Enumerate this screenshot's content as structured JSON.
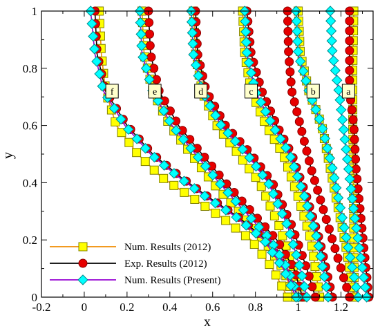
{
  "chart_data": {
    "type": "line",
    "xlabel": "x",
    "ylabel": "y",
    "xlim": [
      -0.2,
      1.35
    ],
    "ylim": [
      0,
      1
    ],
    "xticks": [
      "-0.2",
      "0",
      "0.2",
      "0.4",
      "0.6",
      "0.8",
      "1",
      "1.2"
    ],
    "xtick_values": [
      -0.2,
      0,
      0.2,
      0.4,
      0.6,
      0.8,
      1,
      1.2
    ],
    "yticks": [
      "0",
      "0.2",
      "0.4",
      "0.6",
      "0.8",
      "1"
    ],
    "ytick_values": [
      0,
      0.2,
      0.4,
      0.6,
      0.8,
      1
    ],
    "grid": false,
    "legend_position": "bottom-left",
    "legend": [
      {
        "label": "Num. Results (2012)",
        "line_color": "#f08c00",
        "marker": "square",
        "marker_fill": "#ffff00",
        "marker_edge": "#808000"
      },
      {
        "label": "Exp. Results (2012)",
        "line_color": "#000000",
        "marker": "circle",
        "marker_fill": "#e60000",
        "marker_edge": "#8b0000"
      },
      {
        "label": "Num. Results (Present)",
        "line_color": "#9400d3",
        "marker": "diamond",
        "marker_fill": "#00ffff",
        "marker_edge": "#008b8b"
      }
    ],
    "case_labels": [
      {
        "text": "a",
        "x": 1.235,
        "y": 0.72
      },
      {
        "text": "b",
        "x": 1.07,
        "y": 0.72
      },
      {
        "text": "c",
        "x": 0.78,
        "y": 0.72
      },
      {
        "text": "d",
        "x": 0.545,
        "y": 0.72
      },
      {
        "text": "e",
        "x": 0.33,
        "y": 0.72
      },
      {
        "text": "f",
        "x": 0.13,
        "y": 0.72
      }
    ],
    "series": [
      {
        "case": "a",
        "type": "num2012",
        "points": [
          [
            1.26,
            1.0
          ],
          [
            1.255,
            0.8
          ],
          [
            1.255,
            0.6
          ],
          [
            1.258,
            0.4
          ],
          [
            1.26,
            0.2
          ],
          [
            1.262,
            0.0
          ]
        ]
      },
      {
        "case": "a",
        "type": "exp2012",
        "points": [
          [
            1.24,
            1.0
          ],
          [
            1.24,
            0.85
          ],
          [
            1.24,
            0.72
          ],
          [
            1.26,
            0.6
          ],
          [
            1.27,
            0.45
          ],
          [
            1.29,
            0.3
          ],
          [
            1.31,
            0.15
          ],
          [
            1.33,
            0.0
          ]
        ]
      },
      {
        "case": "a",
        "type": "present",
        "points": [
          [
            1.15,
            1.0
          ],
          [
            1.16,
            0.85
          ],
          [
            1.19,
            0.72
          ],
          [
            1.21,
            0.6
          ],
          [
            1.235,
            0.45
          ],
          [
            1.26,
            0.3
          ],
          [
            1.29,
            0.15
          ],
          [
            1.32,
            0.0
          ]
        ]
      },
      {
        "case": "b",
        "type": "num2012",
        "points": [
          [
            1.0,
            1.0
          ],
          [
            1.01,
            0.85
          ],
          [
            1.05,
            0.72
          ],
          [
            1.11,
            0.6
          ],
          [
            1.15,
            0.45
          ],
          [
            1.19,
            0.3
          ],
          [
            1.23,
            0.15
          ],
          [
            1.26,
            0.0
          ]
        ]
      },
      {
        "case": "b",
        "type": "exp2012",
        "points": [
          [
            0.95,
            1.0
          ],
          [
            0.955,
            0.85
          ],
          [
            0.97,
            0.72
          ],
          [
            1.01,
            0.6
          ],
          [
            1.06,
            0.45
          ],
          [
            1.12,
            0.3
          ],
          [
            1.18,
            0.15
          ],
          [
            1.24,
            0.0
          ]
        ]
      },
      {
        "case": "b",
        "type": "present",
        "points": [
          [
            0.99,
            1.0
          ],
          [
            1.0,
            0.85
          ],
          [
            1.05,
            0.72
          ],
          [
            1.11,
            0.6
          ],
          [
            1.16,
            0.45
          ],
          [
            1.2,
            0.3
          ],
          [
            1.24,
            0.15
          ],
          [
            1.28,
            0.0
          ]
        ]
      },
      {
        "case": "c",
        "type": "num2012",
        "points": [
          [
            0.74,
            1.0
          ],
          [
            0.75,
            0.85
          ],
          [
            0.78,
            0.72
          ],
          [
            0.85,
            0.6
          ],
          [
            0.93,
            0.5
          ],
          [
            1.0,
            0.35
          ],
          [
            1.06,
            0.2
          ],
          [
            1.1,
            0.0
          ]
        ]
      },
      {
        "case": "c",
        "type": "exp2012",
        "points": [
          [
            0.76,
            1.0
          ],
          [
            0.78,
            0.85
          ],
          [
            0.83,
            0.72
          ],
          [
            0.9,
            0.6
          ],
          [
            0.97,
            0.5
          ],
          [
            1.04,
            0.35
          ],
          [
            1.1,
            0.2
          ],
          [
            1.16,
            0.0
          ]
        ]
      },
      {
        "case": "c",
        "type": "present",
        "points": [
          [
            0.75,
            1.0
          ],
          [
            0.76,
            0.85
          ],
          [
            0.8,
            0.72
          ],
          [
            0.88,
            0.6
          ],
          [
            0.96,
            0.5
          ],
          [
            1.03,
            0.35
          ],
          [
            1.09,
            0.2
          ],
          [
            1.14,
            0.0
          ]
        ]
      },
      {
        "case": "d",
        "type": "num2012",
        "points": [
          [
            0.51,
            1.0
          ],
          [
            0.52,
            0.85
          ],
          [
            0.55,
            0.72
          ],
          [
            0.62,
            0.6
          ],
          [
            0.72,
            0.5
          ],
          [
            0.82,
            0.4
          ],
          [
            0.91,
            0.25
          ],
          [
            0.98,
            0.1
          ],
          [
            1.02,
            0.0
          ]
        ]
      },
      {
        "case": "d",
        "type": "exp2012",
        "points": [
          [
            0.52,
            1.0
          ],
          [
            0.53,
            0.85
          ],
          [
            0.57,
            0.72
          ],
          [
            0.66,
            0.6
          ],
          [
            0.78,
            0.5
          ],
          [
            0.88,
            0.4
          ],
          [
            0.97,
            0.25
          ],
          [
            1.04,
            0.1
          ],
          [
            1.08,
            0.0
          ]
        ]
      },
      {
        "case": "d",
        "type": "present",
        "points": [
          [
            0.5,
            1.0
          ],
          [
            0.51,
            0.85
          ],
          [
            0.55,
            0.72
          ],
          [
            0.64,
            0.6
          ],
          [
            0.76,
            0.5
          ],
          [
            0.86,
            0.4
          ],
          [
            0.95,
            0.25
          ],
          [
            1.01,
            0.1
          ],
          [
            1.04,
            0.0
          ]
        ]
      },
      {
        "case": "e",
        "type": "num2012",
        "points": [
          [
            0.27,
            1.0
          ],
          [
            0.28,
            0.85
          ],
          [
            0.32,
            0.72
          ],
          [
            0.4,
            0.6
          ],
          [
            0.5,
            0.5
          ],
          [
            0.6,
            0.4
          ],
          [
            0.72,
            0.3
          ],
          [
            0.84,
            0.2
          ],
          [
            0.93,
            0.1
          ],
          [
            0.98,
            0.0
          ]
        ]
      },
      {
        "case": "e",
        "type": "exp2012",
        "points": [
          [
            0.3,
            1.0
          ],
          [
            0.31,
            0.85
          ],
          [
            0.35,
            0.72
          ],
          [
            0.44,
            0.6
          ],
          [
            0.55,
            0.5
          ],
          [
            0.66,
            0.4
          ],
          [
            0.78,
            0.3
          ],
          [
            0.9,
            0.2
          ],
          [
            0.98,
            0.1
          ],
          [
            1.02,
            0.0
          ]
        ]
      },
      {
        "case": "e",
        "type": "present",
        "points": [
          [
            0.26,
            1.0
          ],
          [
            0.27,
            0.85
          ],
          [
            0.32,
            0.72
          ],
          [
            0.41,
            0.6
          ],
          [
            0.52,
            0.5
          ],
          [
            0.63,
            0.4
          ],
          [
            0.75,
            0.3
          ],
          [
            0.87,
            0.2
          ],
          [
            0.95,
            0.1
          ],
          [
            1.0,
            0.0
          ]
        ]
      },
      {
        "case": "f",
        "type": "num2012",
        "points": [
          [
            0.07,
            1.0
          ],
          [
            0.08,
            0.85
          ],
          [
            0.1,
            0.72
          ],
          [
            0.15,
            0.6
          ],
          [
            0.25,
            0.5
          ],
          [
            0.36,
            0.42
          ],
          [
            0.5,
            0.35
          ],
          [
            0.64,
            0.28
          ],
          [
            0.78,
            0.2
          ],
          [
            0.88,
            0.1
          ],
          [
            0.95,
            0.0
          ]
        ]
      },
      {
        "case": "f",
        "type": "exp2012",
        "points": [
          [
            0.05,
            1.0
          ],
          [
            0.06,
            0.85
          ],
          [
            0.1,
            0.72
          ],
          [
            0.2,
            0.6
          ],
          [
            0.32,
            0.5
          ],
          [
            0.45,
            0.42
          ],
          [
            0.58,
            0.35
          ],
          [
            0.72,
            0.28
          ],
          [
            0.85,
            0.2
          ],
          [
            0.94,
            0.1
          ],
          [
            1.0,
            0.0
          ]
        ]
      },
      {
        "case": "f",
        "type": "present",
        "points": [
          [
            0.03,
            1.0
          ],
          [
            0.05,
            0.85
          ],
          [
            0.09,
            0.72
          ],
          [
            0.19,
            0.6
          ],
          [
            0.31,
            0.5
          ],
          [
            0.44,
            0.42
          ],
          [
            0.57,
            0.35
          ],
          [
            0.71,
            0.28
          ],
          [
            0.84,
            0.2
          ],
          [
            0.93,
            0.1
          ],
          [
            0.99,
            0.0
          ]
        ]
      }
    ]
  }
}
